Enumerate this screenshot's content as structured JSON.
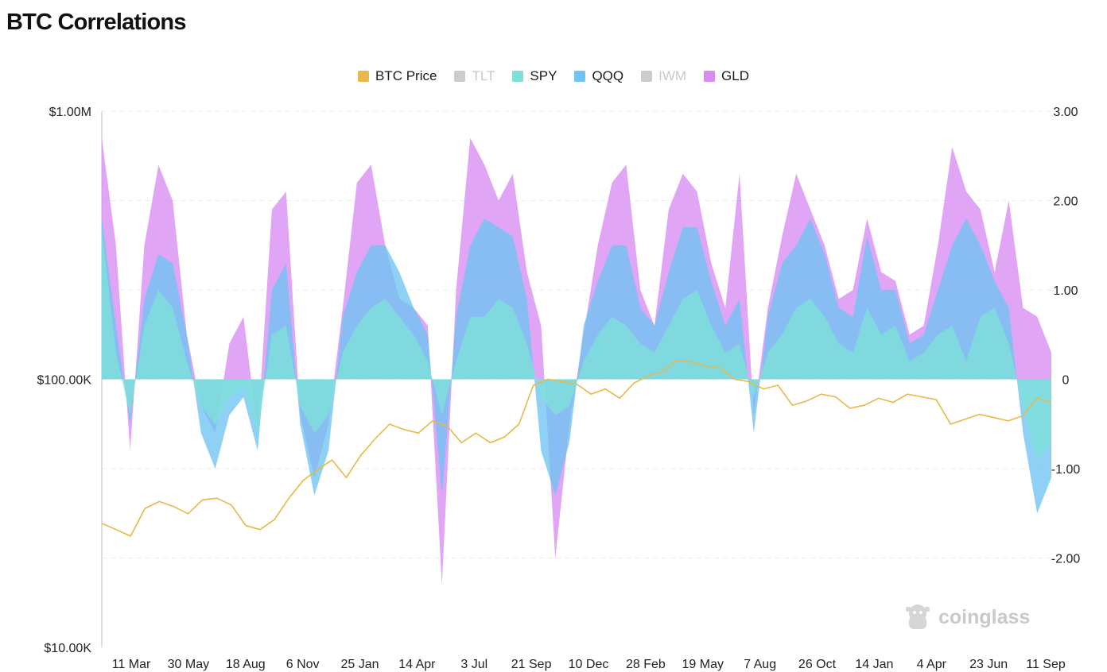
{
  "title": "BTC Correlations",
  "watermark": "coinglass",
  "legend": [
    {
      "label": "BTC Price",
      "color": "#E8B84A",
      "active": true
    },
    {
      "label": "TLT",
      "color": "#CCCCCC",
      "active": false
    },
    {
      "label": "SPY",
      "color": "#7FE0DA",
      "active": true
    },
    {
      "label": "QQQ",
      "color": "#6EC4F2",
      "active": true
    },
    {
      "label": "IWM",
      "color": "#CCCCCC",
      "active": false
    },
    {
      "label": "GLD",
      "color": "#D98CF2",
      "active": true
    }
  ],
  "chart_data": {
    "type": "area",
    "title": "BTC Correlations",
    "x_ticks": [
      "11 Mar",
      "30 May",
      "18 Aug",
      "6 Nov",
      "25 Jan",
      "14 Apr",
      "3 Jul",
      "21 Sep",
      "10 Dec",
      "28 Feb",
      "19 May",
      "7 Aug",
      "26 Oct",
      "14 Jan",
      "4 Apr",
      "23 Jun",
      "11 Sep"
    ],
    "y_left": {
      "scale": "log",
      "ticks": [
        "$1.00M",
        "$100.00K",
        "$10.00K"
      ],
      "range": [
        10000,
        1000000
      ]
    },
    "y_right": {
      "scale": "linear",
      "ticks": [
        "3.00",
        "2.00",
        "1.00",
        "0",
        "-1.00",
        "-2.00"
      ],
      "range": [
        -3,
        3
      ]
    },
    "grid": true,
    "legend_position": "top-center",
    "series": [
      {
        "name": "BTC Price",
        "axis": "left",
        "color": "#E8B84A",
        "values": [
          29000,
          27500,
          26000,
          33000,
          35000,
          33500,
          31500,
          35500,
          36000,
          34000,
          28500,
          27500,
          30000,
          36000,
          42000,
          46000,
          50000,
          43000,
          52000,
          60000,
          68000,
          65000,
          63000,
          70000,
          67000,
          58000,
          63000,
          58000,
          61000,
          68000,
          95000,
          100000,
          98000,
          96000,
          88000,
          92000,
          85000,
          97000,
          103000,
          107000,
          118000,
          116000,
          112000,
          110000,
          100000,
          98000,
          92000,
          95000,
          80000,
          83000,
          88000,
          86000,
          78000,
          80000,
          85000,
          82000,
          88000,
          86000,
          84000,
          68000,
          71000,
          74000,
          72000,
          70000,
          73000,
          85000,
          82000
        ]
      },
      {
        "name": "SPY",
        "axis": "right",
        "color": "#7FE0DA",
        "values": [
          1.7,
          0.3,
          -0.4,
          0.6,
          1.0,
          0.8,
          0.2,
          -0.3,
          -0.5,
          -0.2,
          -0.1,
          -0.6,
          0.5,
          0.6,
          -0.3,
          -0.6,
          -0.4,
          0.3,
          0.6,
          0.8,
          0.9,
          0.7,
          0.5,
          0.2,
          -0.4,
          0.2,
          0.7,
          0.7,
          0.9,
          0.8,
          0.4,
          -0.2,
          -0.4,
          -0.3,
          0.2,
          0.5,
          0.7,
          0.6,
          0.4,
          0.3,
          0.6,
          0.9,
          1.0,
          0.6,
          0.3,
          0.4,
          -0.2,
          0.3,
          0.5,
          0.8,
          0.9,
          0.7,
          0.4,
          0.3,
          0.8,
          0.5,
          0.6,
          0.2,
          0.3,
          0.5,
          0.6,
          0.2,
          0.7,
          0.8,
          0.4,
          -0.3,
          -0.9,
          -0.7
        ]
      },
      {
        "name": "QQQ",
        "axis": "right",
        "color": "#6EC4F2",
        "values": [
          1.8,
          0.6,
          -0.5,
          0.9,
          1.4,
          1.3,
          0.5,
          -0.6,
          -1.0,
          -0.4,
          -0.2,
          -0.8,
          1.0,
          1.3,
          -0.5,
          -1.3,
          -0.8,
          0.7,
          1.2,
          1.5,
          1.5,
          1.2,
          0.8,
          0.5,
          -1.3,
          0.7,
          1.5,
          1.8,
          1.7,
          1.6,
          0.9,
          -0.8,
          -1.3,
          -0.7,
          0.6,
          1.1,
          1.5,
          1.5,
          0.8,
          0.6,
          1.2,
          1.7,
          1.7,
          1.1,
          0.6,
          0.9,
          -0.6,
          0.7,
          1.3,
          1.5,
          1.8,
          1.4,
          0.8,
          0.7,
          1.6,
          1.0,
          1.0,
          0.4,
          0.5,
          1.0,
          1.5,
          1.8,
          1.5,
          1.1,
          0.8,
          -0.6,
          -1.5,
          -1.1
        ]
      },
      {
        "name": "GLD",
        "axis": "right",
        "color": "#D98CF2",
        "values": [
          2.7,
          1.5,
          -0.8,
          1.5,
          2.4,
          2.0,
          0.5,
          -0.3,
          -0.6,
          0.4,
          0.7,
          -0.6,
          1.9,
          2.1,
          -0.4,
          -1.1,
          -0.5,
          0.8,
          2.2,
          2.4,
          1.5,
          0.9,
          0.8,
          0.6,
          -2.3,
          1.0,
          2.7,
          2.4,
          2.0,
          2.3,
          1.2,
          0.6,
          -2.0,
          -0.5,
          0.5,
          1.5,
          2.2,
          2.4,
          1.0,
          0.6,
          1.9,
          2.3,
          2.1,
          1.3,
          0.8,
          2.3,
          -0.4,
          0.8,
          1.6,
          2.3,
          1.9,
          1.5,
          0.9,
          1.0,
          1.8,
          1.2,
          1.1,
          0.5,
          0.6,
          1.5,
          2.6,
          2.1,
          1.9,
          1.2,
          2.0,
          0.8,
          0.7,
          0.3
        ]
      }
    ]
  }
}
